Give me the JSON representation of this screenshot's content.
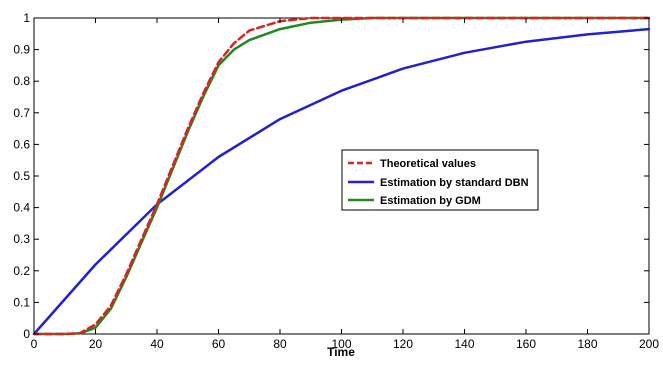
{
  "chart_data": {
    "type": "line",
    "title": "",
    "xlabel": "Time",
    "ylabel": "",
    "xlim": [
      0,
      200
    ],
    "ylim": [
      0,
      1
    ],
    "xticks": [
      0,
      20,
      40,
      60,
      80,
      100,
      120,
      140,
      160,
      180,
      200
    ],
    "yticks": [
      0,
      0.1,
      0.2,
      0.3,
      0.4,
      0.5,
      0.6,
      0.7,
      0.8,
      0.9,
      1
    ],
    "xtick_labels": [
      "0",
      "20",
      "40",
      "60",
      "80",
      "100",
      "120",
      "140",
      "160",
      "180",
      "200"
    ],
    "ytick_labels": [
      "0",
      "0.1",
      "0.2",
      "0.3",
      "0.4",
      "0.5",
      "0.6",
      "0.7",
      "0.8",
      "0.9",
      "1"
    ],
    "grid": false,
    "legend_position": "center-right",
    "series": [
      {
        "name": "Theoretical values",
        "color": "#dd2222",
        "style": "dashed",
        "x": [
          0,
          10,
          15,
          20,
          25,
          30,
          35,
          40,
          45,
          50,
          55,
          60,
          65,
          70,
          80,
          90,
          100,
          120,
          140,
          160,
          180,
          200
        ],
        "y": [
          0,
          0.0,
          0.003,
          0.03,
          0.09,
          0.19,
          0.3,
          0.41,
          0.53,
          0.65,
          0.76,
          0.86,
          0.92,
          0.96,
          0.99,
          1.0,
          1.0,
          1.0,
          1.0,
          1.0,
          1.0,
          1.0
        ]
      },
      {
        "name": "Estimation by standard DBN",
        "color": "#2222cc",
        "style": "solid",
        "x": [
          0,
          20,
          40,
          60,
          80,
          100,
          120,
          140,
          160,
          180,
          200
        ],
        "y": [
          0,
          0.22,
          0.41,
          0.56,
          0.68,
          0.77,
          0.84,
          0.89,
          0.925,
          0.948,
          0.965
        ]
      },
      {
        "name": "Estimation by GDM",
        "color": "#228822",
        "style": "solid",
        "x": [
          0,
          10,
          15,
          20,
          25,
          30,
          35,
          40,
          45,
          50,
          55,
          60,
          65,
          70,
          80,
          90,
          100,
          110,
          120,
          140,
          160,
          180,
          200
        ],
        "y": [
          0,
          0.0,
          0.002,
          0.02,
          0.08,
          0.18,
          0.29,
          0.4,
          0.52,
          0.64,
          0.75,
          0.85,
          0.9,
          0.93,
          0.965,
          0.985,
          0.995,
          1.0,
          1.0,
          1.0,
          1.0,
          1.0,
          1.0
        ]
      }
    ]
  }
}
